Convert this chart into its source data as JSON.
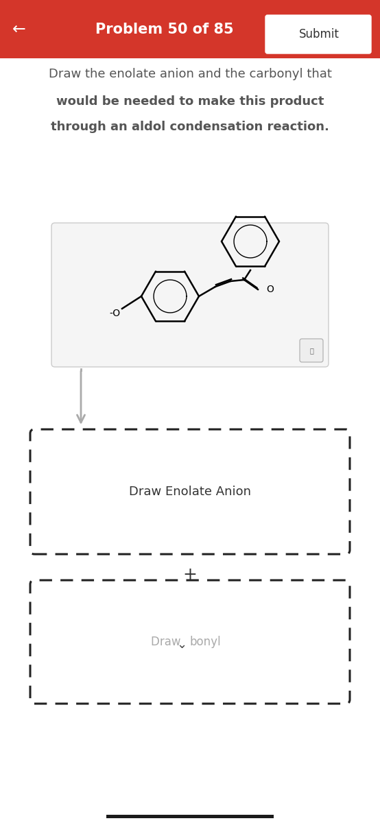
{
  "header_color": "#d4362a",
  "header_text": "Problem 50 of 85",
  "submit_text": "Submit",
  "back_arrow": "←",
  "bg_color": "#ffffff",
  "title_line1": "Draw the enolate anion and the carbonyl that",
  "title_line2": "would be needed to make this product",
  "title_line3": "through an aldol condensation reaction.",
  "title_color": "#555555",
  "title_fontsize": 13.0,
  "draw_enolate_text": "Draw Enolate Anion",
  "draw_carbonyl_text": "Draw ",
  "draw_carbonyl_suffix": "bonyl",
  "plus_text": "+"
}
